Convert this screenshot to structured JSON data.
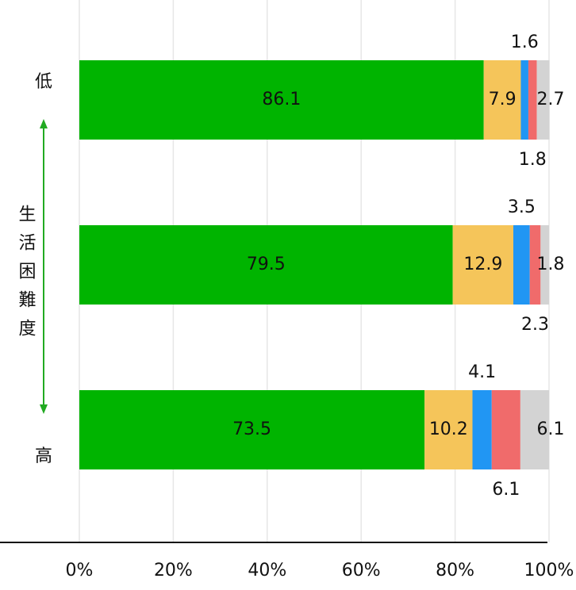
{
  "chart_data": {
    "type": "stacked-barh",
    "side_label": "生活困難度",
    "categories": [
      "低",
      null,
      "高"
    ],
    "series": [
      {
        "color": "#00b400",
        "values": [
          86.1,
          79.5,
          73.5
        ]
      },
      {
        "color": "#f5c55a",
        "values": [
          7.9,
          12.9,
          10.2
        ]
      },
      {
        "color": "#2196f3",
        "values": [
          1.6,
          3.5,
          4.1
        ]
      },
      {
        "color": "#f06b6b",
        "values": [
          1.8,
          2.3,
          6.1
        ]
      },
      {
        "color": "#d3d3d3",
        "values": [
          2.7,
          1.8,
          6.1
        ]
      }
    ],
    "xlim": [
      0,
      100
    ],
    "xticks": [
      {
        "value": 0,
        "label": "0%"
      },
      {
        "value": 20,
        "label": "20%"
      },
      {
        "value": 40,
        "label": "40%"
      },
      {
        "value": 60,
        "label": "60%"
      },
      {
        "value": 80,
        "label": "80%"
      },
      {
        "value": 100,
        "label": "100%"
      }
    ],
    "grid": true
  }
}
